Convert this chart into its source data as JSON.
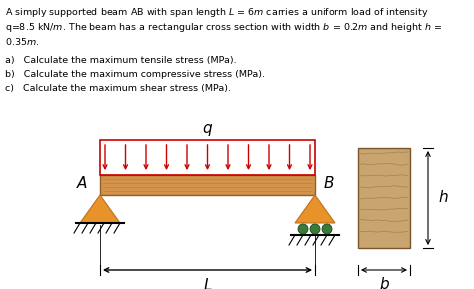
{
  "beam_color": "#D4934A",
  "beam_dark_color": "#8B5E2A",
  "load_color": "#CC0000",
  "support_color": "#E8922A",
  "support_dark": "#C07020",
  "roller_color": "#3A7A3A",
  "cross_section_color": "#C8A46E",
  "cross_section_dark": "#7A5530",
  "background_color": "#FFFFFF",
  "n_load_arrows": 11,
  "label_q": "q",
  "label_A": "A",
  "label_B": "B",
  "label_L": "L",
  "label_h": "h",
  "label_b": "b",
  "title_line1": "A simply supported beam AB with span length $L$ = 6$m$ carries a uniform load of intensity",
  "title_line2": "q=8.5 kN/$m$. The beam has a rectangular cross section with width $b$ = 0.2$m$ and height $h$ =",
  "title_line3": "0.35$m$.",
  "q1": "a)   Calculate the maximum tensile stress (MPa).",
  "q2": "b)   Calculate the maximum compressive stress (MPa).",
  "q3": "c)   Calculate the maximum shear stress (MPa)."
}
